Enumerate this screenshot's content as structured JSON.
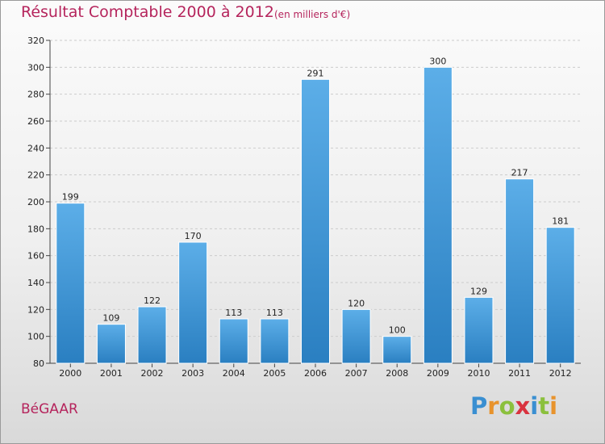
{
  "header": {
    "title": "Résultat Comptable 2000 à 2012",
    "subtitle": "(en milliers d'€)"
  },
  "footer": {
    "commune": "BéGAAR",
    "logo_text": "Proxiti"
  },
  "colors": {
    "title": "#b5245c",
    "bar_top": "#5caee8",
    "bar_bottom": "#2a7fc1",
    "grid": "#cccccc"
  },
  "chart_data": {
    "type": "bar",
    "title": "Résultat Comptable 2000 à 2012",
    "ylabel": "",
    "xlabel": "",
    "categories": [
      "2000",
      "2001",
      "2002",
      "2003",
      "2004",
      "2005",
      "2006",
      "2007",
      "2008",
      "2009",
      "2010",
      "2011",
      "2012"
    ],
    "values": [
      199,
      109,
      122,
      170,
      113,
      113,
      291,
      120,
      100,
      300,
      129,
      217,
      181
    ],
    "ylim": [
      80,
      320
    ],
    "yticks": [
      80,
      100,
      120,
      140,
      160,
      180,
      200,
      220,
      240,
      260,
      280,
      300,
      320
    ],
    "grid": true,
    "data_labels": true
  }
}
